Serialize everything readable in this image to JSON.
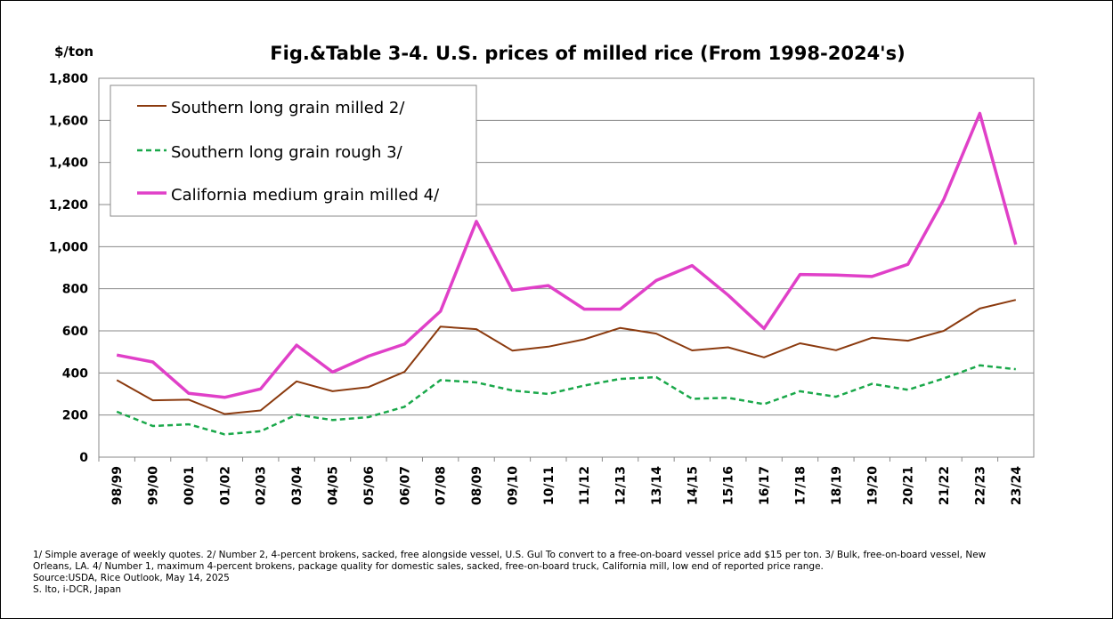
{
  "chart_data": {
    "type": "line",
    "title": "Fig.&Table 3-4.  U.S. prices of milled rice (From 1998-2024's)",
    "ylabel": "$/ton",
    "xlabel": "",
    "ylim": [
      0,
      1800
    ],
    "yticks": [
      "0",
      "200",
      "400",
      "600",
      "800",
      "1,000",
      "1,200",
      "1,400",
      "1,600",
      "1,800"
    ],
    "ytick_values": [
      0,
      200,
      400,
      600,
      800,
      1000,
      1200,
      1400,
      1600,
      1800
    ],
    "grid": true,
    "legend_position": "top-left",
    "categories": [
      "98/99",
      "99/00",
      "00/01",
      "01/02",
      "02/03",
      "03/04",
      "04/05",
      "05/06",
      "06/07",
      "07/08",
      "08/09",
      "09/10",
      "10/11",
      "11/12",
      "12/13",
      "13/14",
      "14/15",
      "15/16",
      "16/17",
      "17/18",
      "18/19",
      "19/20",
      "20/21",
      "21/22",
      "22/23",
      "23/24"
    ],
    "series": [
      {
        "name": "Southern long grain milled 2/",
        "color": "#8B3A0E",
        "style": "solid",
        "values": [
          366,
          270,
          273,
          205,
          222,
          360,
          313,
          333,
          405,
          620,
          608,
          506,
          525,
          560,
          614,
          587,
          507,
          522,
          474,
          541,
          508,
          567,
          553,
          600,
          706,
          747
        ]
      },
      {
        "name": "Southern long grain rough 3/",
        "color": "#1AA84A",
        "style": "dashed",
        "values": [
          216,
          148,
          156,
          108,
          123,
          202,
          176,
          190,
          239,
          366,
          355,
          317,
          300,
          340,
          372,
          380,
          277,
          282,
          252,
          313,
          287,
          348,
          320,
          374,
          436,
          418
        ]
      },
      {
        "name": "California medium grain milled 4/",
        "color": "#E040C8",
        "style": "solid",
        "values": [
          485,
          452,
          303,
          284,
          324,
          532,
          404,
          480,
          537,
          693,
          1120,
          793,
          815,
          703,
          703,
          839,
          910,
          770,
          611,
          868,
          865,
          858,
          916,
          1225,
          1633,
          1010
        ]
      }
    ]
  },
  "notes": {
    "line1": "1/ Simple average of weekly quotes. 2/ Number 2, 4-percent brokens, sacked, free alongside vessel, U.S. Gul To convert to a free-on-board vessel price add $15 per ton. 3/ Bulk, free-on-board vessel, New",
    "line2": "Orleans, LA. 4/ Number 1, maximum 4-percent brokens, package quality for domestic sales, sacked, free-on-board truck, California mill, low end of reported price range.",
    "line3": "Source:USDA,  Rice Outlook, May 14, 2025",
    "line4": "S. Ito, i-DCR, Japan"
  }
}
